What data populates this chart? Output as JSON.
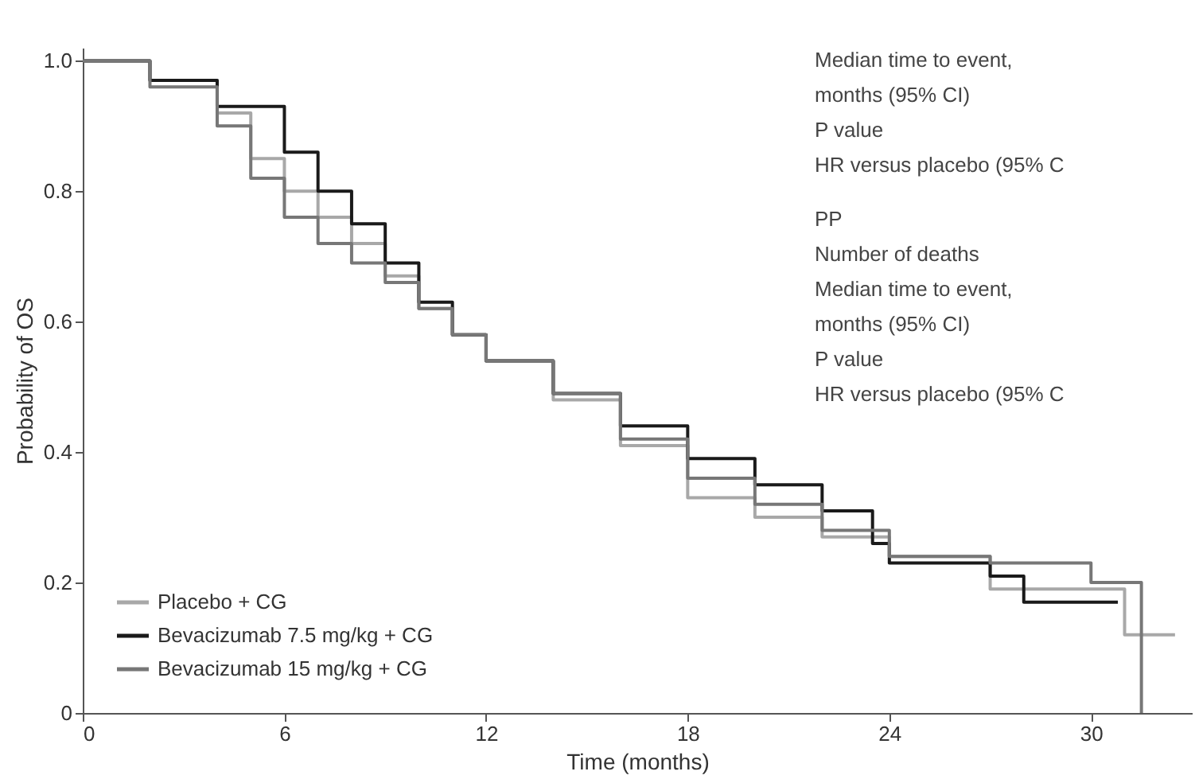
{
  "chart_data": {
    "type": "step",
    "xlabel": "Time (months)",
    "ylabel": "Probability of OS",
    "xlim": [
      0,
      33
    ],
    "ylim": [
      0,
      1.02
    ],
    "xticks": [
      0,
      6,
      12,
      18,
      24,
      30
    ],
    "yticks": [
      {
        "value": 0,
        "label": "0"
      },
      0.2,
      0.4,
      0.6,
      0.8,
      {
        "value": 1,
        "label": "1.0"
      }
    ],
    "legend": "bottom left",
    "grid": false,
    "series": [
      {
        "name": "Placebo + CG",
        "color": "#a8a8a8",
        "x": [
          0,
          2,
          4,
          5,
          6,
          7,
          8,
          9,
          10,
          11,
          12,
          14,
          16,
          18,
          20,
          22,
          24,
          26,
          27,
          30,
          31,
          32.5
        ],
        "values": [
          1.0,
          0.97,
          0.92,
          0.85,
          0.8,
          0.76,
          0.72,
          0.67,
          0.62,
          0.58,
          0.54,
          0.48,
          0.41,
          0.33,
          0.3,
          0.27,
          0.24,
          0.24,
          0.19,
          0.19,
          0.12,
          0.12
        ]
      },
      {
        "name": "Bevacizumab 7.5 mg/kg + CG",
        "color": "#1a1a1a",
        "x": [
          0,
          2,
          4,
          6,
          7,
          8,
          9,
          10,
          11,
          12,
          14,
          16,
          18,
          20,
          22,
          23.5,
          24,
          27,
          28,
          29.5,
          30.8
        ],
        "values": [
          1.0,
          0.97,
          0.93,
          0.86,
          0.8,
          0.75,
          0.69,
          0.63,
          0.58,
          0.54,
          0.49,
          0.44,
          0.39,
          0.35,
          0.31,
          0.26,
          0.23,
          0.21,
          0.17,
          0.17,
          0.17
        ]
      },
      {
        "name": "Bevacizumab 15 mg/kg + CG",
        "color": "#777777",
        "x": [
          0,
          2,
          4,
          5,
          6,
          7,
          8,
          9,
          10,
          11,
          12,
          14,
          16,
          18,
          20,
          22,
          24,
          27,
          30,
          31.5,
          31.5
        ],
        "values": [
          1.0,
          0.96,
          0.9,
          0.82,
          0.76,
          0.72,
          0.69,
          0.66,
          0.62,
          0.58,
          0.54,
          0.49,
          0.42,
          0.36,
          0.32,
          0.28,
          0.24,
          0.23,
          0.2,
          0.2,
          0.0
        ]
      }
    ],
    "annotations": [
      "Median time to event,",
      "months (95% CI)",
      "P value",
      "HR versus placebo (95% C",
      "PP",
      "Number of deaths",
      "Median time to event,",
      "months (95% CI)",
      "P value",
      "HR versus placebo (95% C"
    ]
  }
}
